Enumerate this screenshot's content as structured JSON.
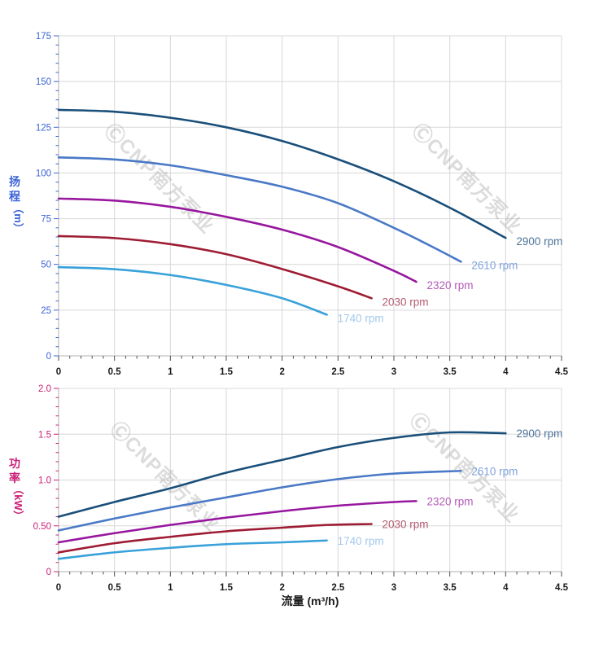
{
  "watermark": {
    "text": "ⒸCNP南方泵业"
  },
  "chart_data": [
    {
      "type": "line",
      "id": "head-curve",
      "title": "",
      "ylabel": "扬程",
      "ylabel_unit": "（m）",
      "xlabel": "",
      "xlim": [
        0,
        4.5
      ],
      "ylim": [
        0,
        175
      ],
      "xtick_step": 0.5,
      "xminor_step": 0.1,
      "ytick_step": 25,
      "yminor_step": 5,
      "grid": true,
      "legend_position": "end-of-line",
      "xtick_labels": [
        "0",
        "0.5",
        "1",
        "1.5",
        "2",
        "2.5",
        "3",
        "3.5",
        "4",
        "4.5"
      ],
      "ytick_labels": [
        "0",
        "25",
        "50",
        "75",
        "100",
        "125",
        "150",
        "175"
      ],
      "accent": "#3c63d7",
      "grid_color": "#d8d8d8",
      "axis_color": "#b0b0b0",
      "xtick_color": "#4d4d4d",
      "xtext_color": "#1a1a1a",
      "series": [
        {
          "name": "2900 rpm",
          "color": "#1a4f7a",
          "label_color": "#4f7499",
          "points": [
            [
              0,
              134.5
            ],
            [
              0.5,
              133.5
            ],
            [
              1,
              130.2
            ],
            [
              1.5,
              125.0
            ],
            [
              2,
              117.5
            ],
            [
              2.5,
              107.5
            ],
            [
              3,
              95.5
            ],
            [
              3.5,
              81.0
            ],
            [
              4,
              64.5
            ]
          ]
        },
        {
          "name": "2610 rpm",
          "color": "#4a79c6",
          "label_color": "#7fa3dc",
          "points": [
            [
              0,
              108.5
            ],
            [
              0.5,
              107.4
            ],
            [
              1,
              104.2
            ],
            [
              1.5,
              98.8
            ],
            [
              2,
              92.5
            ],
            [
              2.5,
              83.5
            ],
            [
              3,
              70.0
            ],
            [
              3.3,
              61.0
            ],
            [
              3.6,
              51.5
            ]
          ]
        },
        {
          "name": "2320 rpm",
          "color": "#97179e",
          "label_color": "#b25ab8",
          "points": [
            [
              0,
              86.0
            ],
            [
              0.5,
              84.9
            ],
            [
              1,
              81.5
            ],
            [
              1.5,
              76.0
            ],
            [
              2,
              69.0
            ],
            [
              2.5,
              59.5
            ],
            [
              3,
              46.5
            ],
            [
              3.2,
              40.5
            ]
          ]
        },
        {
          "name": "2030 rpm",
          "color": "#9e1c33",
          "label_color": "#b35c70",
          "points": [
            [
              0,
              65.5
            ],
            [
              0.5,
              64.4
            ],
            [
              1,
              61.1
            ],
            [
              1.5,
              55.6
            ],
            [
              2,
              47.5
            ],
            [
              2.5,
              38.0
            ],
            [
              2.8,
              31.5
            ]
          ]
        },
        {
          "name": "1740 rpm",
          "color": "#38a1da",
          "label_color": "#a3c9ea",
          "points": [
            [
              0,
              48.5
            ],
            [
              0.5,
              47.4
            ],
            [
              1,
              44.2
            ],
            [
              1.5,
              38.8
            ],
            [
              2,
              31.5
            ],
            [
              2.4,
              22.5
            ]
          ]
        }
      ]
    },
    {
      "type": "line",
      "id": "power-curve",
      "title": "",
      "ylabel": "功率",
      "ylabel_unit": "（kW）",
      "xlabel": "流量 (m³/h)",
      "xlim": [
        0,
        4.5
      ],
      "ylim": [
        0,
        2
      ],
      "xtick_step": 0.5,
      "xminor_step": 0.1,
      "ytick_step": 0.5,
      "yminor_step": 0.1,
      "grid": true,
      "legend_position": "end-of-line",
      "xtick_labels": [
        "0",
        "0.5",
        "1",
        "1.5",
        "2",
        "2.5",
        "3",
        "3.5",
        "4",
        "4.5"
      ],
      "ytick_labels": [
        "0",
        "0.50",
        "1.0",
        "1.5",
        "2.0"
      ],
      "accent": "#cb2078",
      "grid_color": "#d8d8d8",
      "axis_color": "#b0b0b0",
      "xtick_color": "#4d4d4d",
      "xtext_color": "#1a1a1a",
      "series": [
        {
          "name": "2900 rpm",
          "color": "#1a4f7a",
          "label_color": "#4f7499",
          "points": [
            [
              0,
              0.6
            ],
            [
              0.5,
              0.76
            ],
            [
              1,
              0.91
            ],
            [
              1.5,
              1.08
            ],
            [
              2,
              1.22
            ],
            [
              2.5,
              1.36
            ],
            [
              3,
              1.46
            ],
            [
              3.5,
              1.52
            ],
            [
              4,
              1.51
            ]
          ]
        },
        {
          "name": "2610 rpm",
          "color": "#4a79c6",
          "label_color": "#7fa3dc",
          "points": [
            [
              0,
              0.45
            ],
            [
              0.5,
              0.58
            ],
            [
              1,
              0.7
            ],
            [
              1.5,
              0.81
            ],
            [
              2,
              0.92
            ],
            [
              2.5,
              1.01
            ],
            [
              3,
              1.07
            ],
            [
              3.6,
              1.1
            ]
          ]
        },
        {
          "name": "2320 rpm",
          "color": "#97179e",
          "label_color": "#b25ab8",
          "points": [
            [
              0,
              0.32
            ],
            [
              0.5,
              0.42
            ],
            [
              1,
              0.51
            ],
            [
              1.5,
              0.59
            ],
            [
              2,
              0.66
            ],
            [
              2.5,
              0.72
            ],
            [
              3,
              0.76
            ],
            [
              3.2,
              0.77
            ]
          ]
        },
        {
          "name": "2030 rpm",
          "color": "#9e1c33",
          "label_color": "#b35c70",
          "points": [
            [
              0,
              0.21
            ],
            [
              0.5,
              0.31
            ],
            [
              1,
              0.38
            ],
            [
              1.5,
              0.44
            ],
            [
              2,
              0.48
            ],
            [
              2.4,
              0.51
            ],
            [
              2.8,
              0.52
            ]
          ]
        },
        {
          "name": "1740 rpm",
          "color": "#38a1da",
          "label_color": "#a3c9ea",
          "points": [
            [
              0,
              0.14
            ],
            [
              0.5,
              0.21
            ],
            [
              1,
              0.26
            ],
            [
              1.5,
              0.3
            ],
            [
              2,
              0.32
            ],
            [
              2.4,
              0.34
            ]
          ]
        }
      ]
    }
  ]
}
